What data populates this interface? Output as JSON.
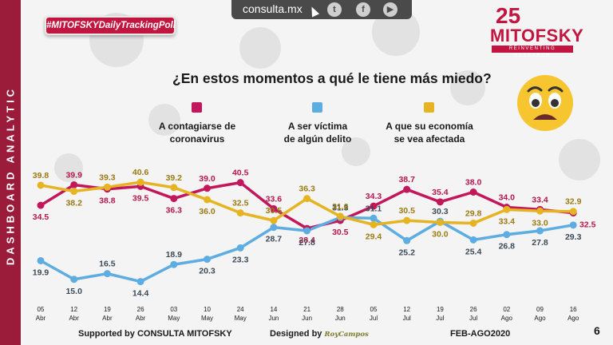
{
  "sidebar": {
    "label": "DASHBOARD ANALYTIC"
  },
  "topbar": {
    "site": "consulta.mx",
    "social": [
      "twitter-icon",
      "facebook-icon",
      "youtube-icon"
    ]
  },
  "hashtag": "#MITOFSKYDailyTrackingPoll",
  "logo": {
    "number": "25",
    "name": "MITOFSKY",
    "tagline": "REINVENTING RESEARCH"
  },
  "question": "¿En estos momentos a qué le tiene más miedo?",
  "legend": [
    {
      "label": "A contagiarse de\ncoronavirus",
      "color": "#c2185b"
    },
    {
      "label": "A ser víctima\nde algún delito",
      "color": "#5dade2"
    },
    {
      "label": "A que su economía\nse vea afectada",
      "color": "#e6b422"
    }
  ],
  "chart_data": {
    "type": "line",
    "x": [
      {
        "day": "05",
        "month": "Abr"
      },
      {
        "day": "12",
        "month": "Abr"
      },
      {
        "day": "19",
        "month": "Abr"
      },
      {
        "day": "26",
        "month": "Abr"
      },
      {
        "day": "03",
        "month": "May"
      },
      {
        "day": "10",
        "month": "May"
      },
      {
        "day": "24",
        "month": "May"
      },
      {
        "day": "14",
        "month": "Jun"
      },
      {
        "day": "21",
        "month": "Jun"
      },
      {
        "day": "28",
        "month": "Jun"
      },
      {
        "day": "05",
        "month": "Jul"
      },
      {
        "day": "12",
        "month": "Jul"
      },
      {
        "day": "19",
        "month": "Jul"
      },
      {
        "day": "26",
        "month": "Jul"
      },
      {
        "day": "02",
        "month": "Ago"
      },
      {
        "day": "09",
        "month": "Ago"
      },
      {
        "day": "16",
        "month": "Ago"
      }
    ],
    "series": [
      {
        "name": "A contagiarse de coronavirus",
        "color": "#c2185b",
        "label_color": "#b5174f",
        "values": [
          34.5,
          39.9,
          38.8,
          39.5,
          36.3,
          39.0,
          40.5,
          33.6,
          28.4,
          30.5,
          34.3,
          38.7,
          35.4,
          38.0,
          34.0,
          33.4,
          32.5
        ]
      },
      {
        "name": "A ser víctima de algún delito",
        "color": "#5dade2",
        "label_color": "#3c4a57",
        "values": [
          19.9,
          15.0,
          16.5,
          14.4,
          18.9,
          20.3,
          23.3,
          28.7,
          27.8,
          31.3,
          31.1,
          25.2,
          30.3,
          25.4,
          26.8,
          27.8,
          29.3
        ]
      },
      {
        "name": "A que su economía se vea afectada",
        "color": "#e6b422",
        "label_color": "#9a7a12",
        "values": [
          39.8,
          38.2,
          39.3,
          40.6,
          39.2,
          36.0,
          32.5,
          30.5,
          36.3,
          31.6,
          29.4,
          30.5,
          30.0,
          29.8,
          33.4,
          33.0,
          32.9
        ]
      }
    ],
    "ylim": [
      12,
      44
    ]
  },
  "footer": {
    "supported": "Supported by   CONSULTA   MITOFSKY",
    "designed": "Designed by",
    "signature": "RoyCampos",
    "period": "FEB-AGO2020",
    "page": "6"
  }
}
